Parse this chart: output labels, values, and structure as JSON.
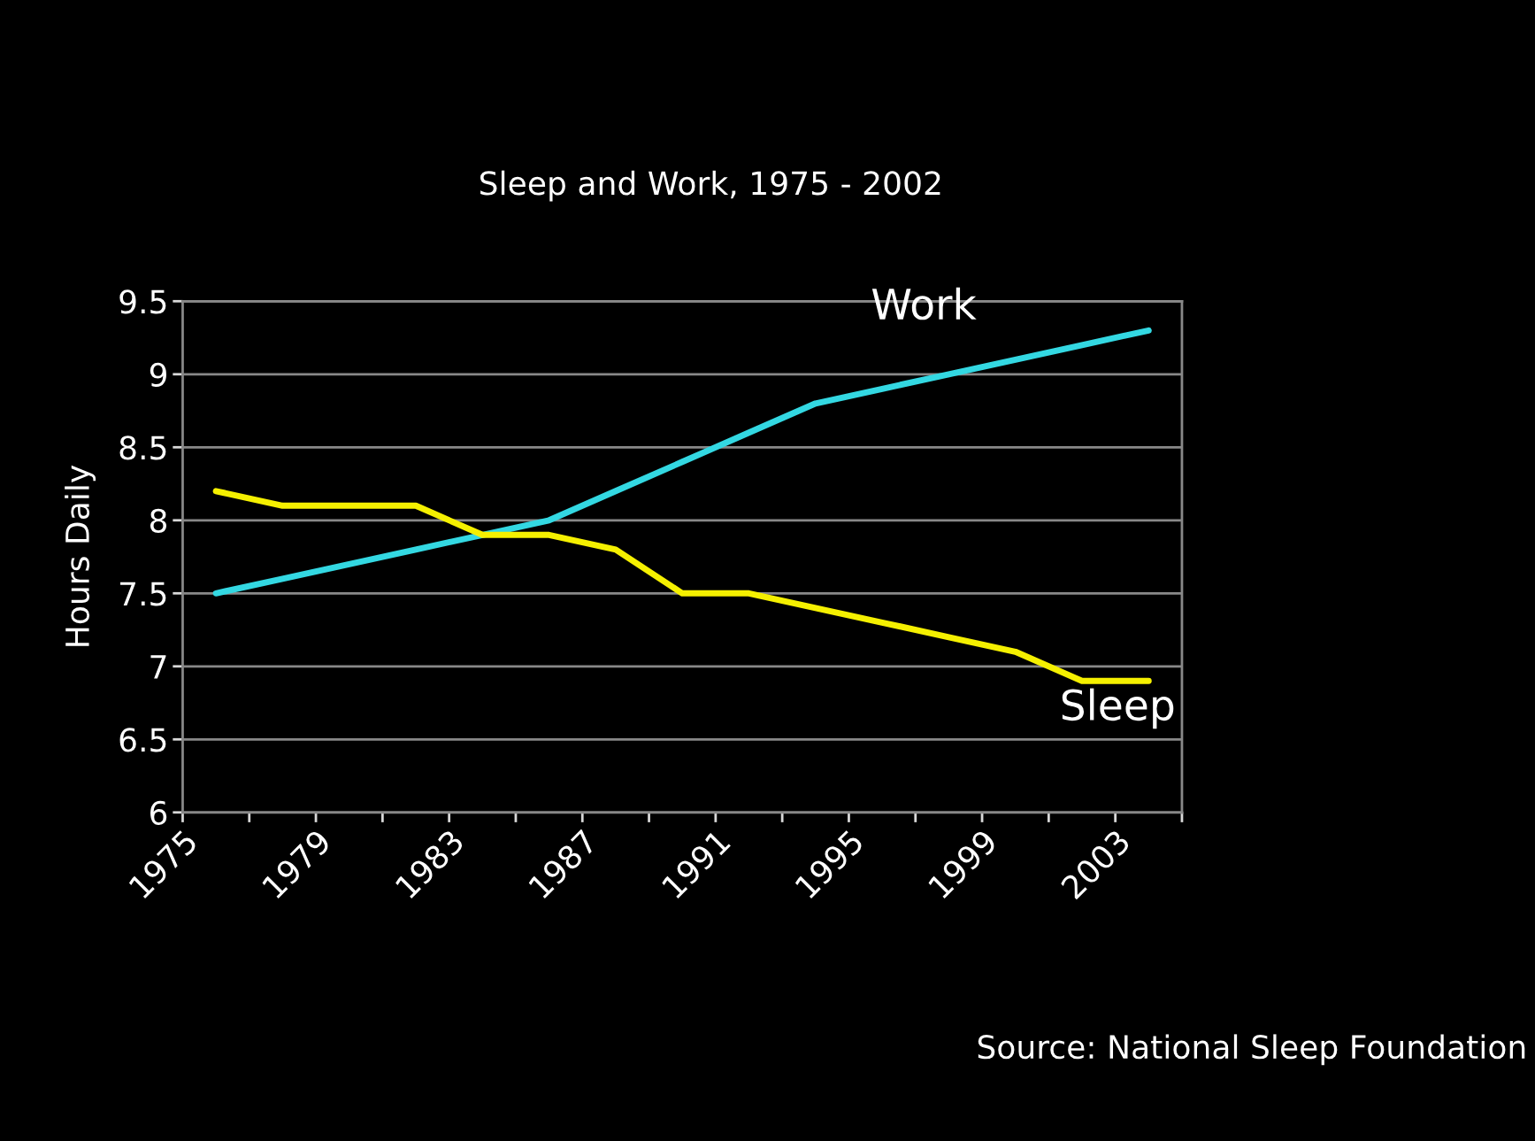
{
  "chart_data": {
    "type": "line",
    "title": "Sleep and Work, 1975 - 2002",
    "ylabel": "Hours Daily",
    "x": [
      1976,
      1978,
      1980,
      1982,
      1984,
      1986,
      1988,
      1990,
      1992,
      1994,
      1996,
      1998,
      2000,
      2002,
      2004
    ],
    "series": [
      {
        "name": "Work",
        "color": "#33d8e2",
        "values": [
          7.5,
          7.6,
          7.7,
          7.8,
          7.9,
          8.0,
          8.2,
          8.4,
          8.6,
          8.8,
          8.9,
          9.0,
          9.1,
          9.2,
          9.3
        ]
      },
      {
        "name": "Sleep",
        "color": "#f5f000",
        "values": [
          8.2,
          8.1,
          8.1,
          8.1,
          7.9,
          7.9,
          7.8,
          7.5,
          7.5,
          7.4,
          7.3,
          7.2,
          7.1,
          6.9,
          6.9
        ]
      }
    ],
    "xlim": [
      1975,
      2005
    ],
    "xticks": [
      1975,
      {
        "value": 1977,
        "label": null
      },
      1979,
      {
        "value": 1981,
        "label": null
      },
      1983,
      {
        "value": 1985,
        "label": null
      },
      1987,
      {
        "value": 1989,
        "label": null
      },
      1991,
      {
        "value": 1993,
        "label": null
      },
      1995,
      {
        "value": 1997,
        "label": null
      },
      1999,
      {
        "value": 2001,
        "label": null
      },
      2003,
      {
        "value": 2005,
        "label": null
      }
    ],
    "ylim": [
      6,
      9.5
    ],
    "yticks": [
      6,
      6.5,
      7,
      7.5,
      8,
      8.5,
      9,
      9.5
    ],
    "grid": "y",
    "marker": "none",
    "line_style": "solid",
    "annotations": [
      "Source: National Sleep Foundation"
    ]
  }
}
